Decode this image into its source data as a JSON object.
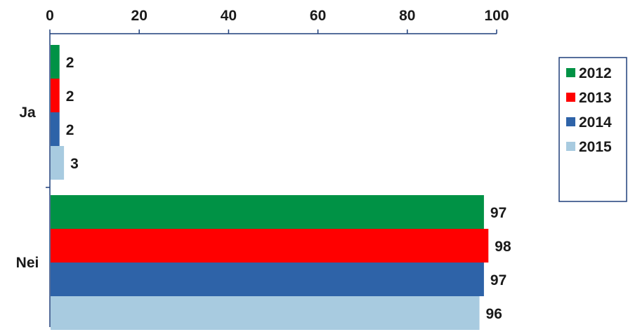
{
  "chart_data": {
    "type": "bar",
    "orientation": "horizontal",
    "title": "",
    "xlabel": "",
    "ylabel": "",
    "xlim": [
      0,
      100
    ],
    "x_ticks": [
      0,
      20,
      40,
      60,
      80,
      100
    ],
    "x_axis_position": "top",
    "grid": false,
    "categories": [
      "Ja",
      "Nei"
    ],
    "series": [
      {
        "name": "2012",
        "color": "#009245",
        "values": [
          2,
          97
        ]
      },
      {
        "name": "2013",
        "color": "#ff0000",
        "values": [
          2,
          98
        ]
      },
      {
        "name": "2014",
        "color": "#2e63a8",
        "values": [
          2,
          97
        ]
      },
      {
        "name": "2015",
        "color": "#a8cbe0",
        "values": [
          3,
          96
        ]
      }
    ],
    "data_labels": true,
    "legend": {
      "position": "right",
      "border_color": "#1f3f7a"
    },
    "axis_color": "#1f3f7a"
  }
}
